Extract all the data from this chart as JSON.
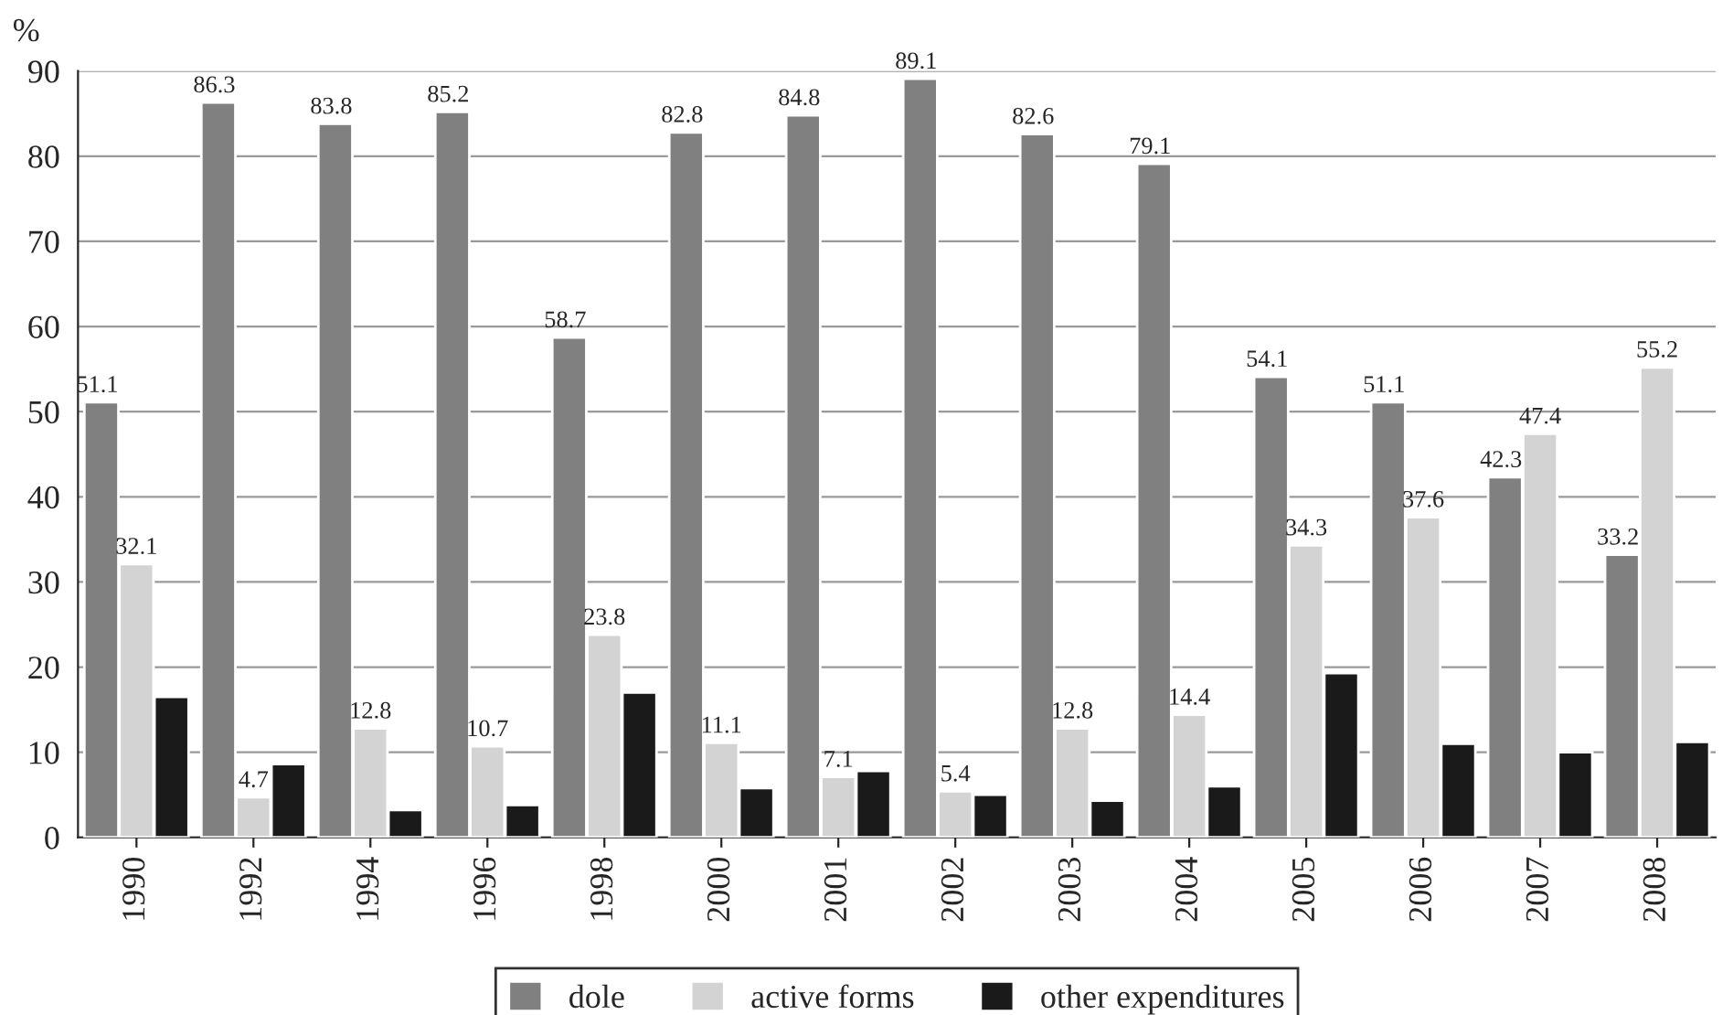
{
  "chart_data": {
    "type": "bar",
    "ylabel": "%",
    "categories": [
      "1990",
      "1992",
      "1994",
      "1996",
      "1998",
      "2000",
      "2001",
      "2002",
      "2003",
      "2004",
      "2005",
      "2006",
      "2007",
      "2008"
    ],
    "series": [
      {
        "name": "dole",
        "color": "#808080",
        "values": [
          51.1,
          86.3,
          83.8,
          85.2,
          58.7,
          82.8,
          84.8,
          89.1,
          82.6,
          79.1,
          54.1,
          51.1,
          42.3,
          33.2
        ],
        "value_labels": [
          "51.1",
          "86.3",
          "83.8",
          "85.2",
          "58.7",
          "82.8",
          "84.8",
          "89.1",
          "82.6",
          "79.1",
          "54.1",
          "51.1",
          "42.3",
          "33.2"
        ]
      },
      {
        "name": "active forms",
        "color": "#d3d3d3",
        "values": [
          32.1,
          4.7,
          12.8,
          10.7,
          23.8,
          11.1,
          7.1,
          5.4,
          12.8,
          14.4,
          34.3,
          37.6,
          47.4,
          55.2
        ],
        "value_labels": [
          "32.1",
          "4.7",
          "12.8",
          "10.7",
          "23.8",
          "11.1",
          "7.1",
          "5.4",
          "12.8",
          "14.4",
          "34.3",
          "37.6",
          "47.4",
          "55.2"
        ]
      },
      {
        "name": "other expenditures",
        "color": "#1a1a1a",
        "values": [
          16.5,
          8.6,
          3.2,
          3.8,
          17,
          5.8,
          7.8,
          5,
          4.3,
          6,
          19.3,
          11,
          10,
          11.2
        ]
      }
    ],
    "ylim": [
      0,
      90
    ],
    "yticks": [
      0,
      10,
      20,
      30,
      40,
      50,
      60,
      70,
      80,
      90
    ],
    "grid": "y",
    "legend": "bottom"
  }
}
